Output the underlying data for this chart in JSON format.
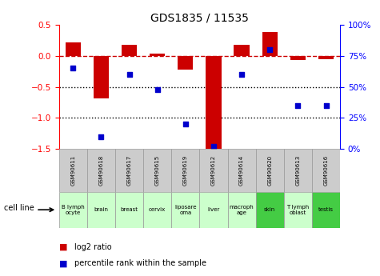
{
  "title": "GDS1835 / 11535",
  "samples": [
    "GSM90611",
    "GSM90618",
    "GSM90617",
    "GSM90615",
    "GSM90619",
    "GSM90612",
    "GSM90614",
    "GSM90620",
    "GSM90613",
    "GSM90616"
  ],
  "cell_lines": [
    "B lymph\nocyte",
    "brain",
    "breast",
    "cervix",
    "liposare\noma",
    "liver",
    "macroph\nage",
    "skin",
    "T lymph\noblast",
    "testis"
  ],
  "cell_bg": [
    "#ccffcc",
    "#ccffcc",
    "#ccffcc",
    "#ccffcc",
    "#ccffcc",
    "#ccffcc",
    "#ccffcc",
    "#44cc44",
    "#ccffcc",
    "#44cc44"
  ],
  "log2_ratio": [
    0.22,
    -0.68,
    0.18,
    0.04,
    -0.22,
    -1.55,
    0.18,
    0.38,
    -0.07,
    -0.05
  ],
  "percentile_rank": [
    65,
    10,
    60,
    48,
    20,
    2,
    60,
    80,
    35,
    35
  ],
  "ylim_left": [
    -1.5,
    0.5
  ],
  "ylim_right": [
    0,
    100
  ],
  "bar_color": "#cc0000",
  "dot_color": "#0000cc",
  "hline_color": "#cc0000",
  "grid_color": "black",
  "legend_bar_color": "#cc0000",
  "legend_dot_color": "#0000cc",
  "gsm_bg": "#cccccc",
  "gsm_edge": "#999999"
}
